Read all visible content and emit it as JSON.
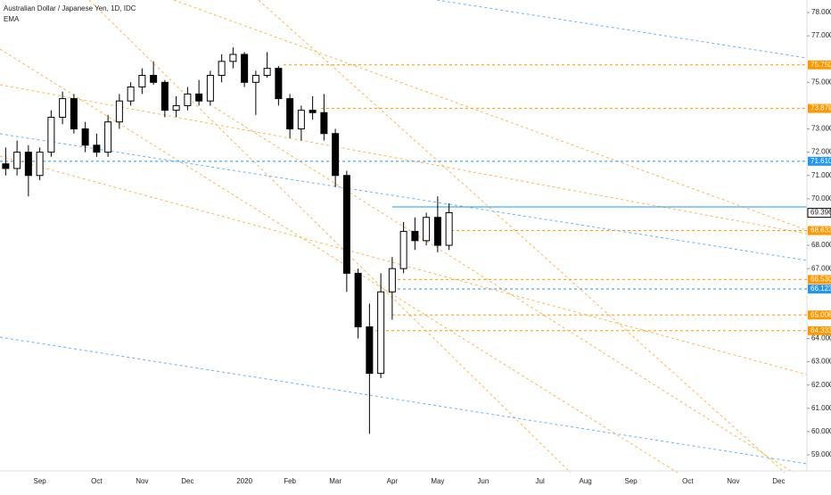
{
  "chart_data": {
    "type": "candlestick",
    "title": "Australian Dollar / Japanese Yen, 1D, IDC",
    "indicator": "EMA",
    "categories": [
      null,
      null,
      null,
      "Sep",
      null,
      null,
      null,
      null,
      "Oct",
      null,
      null,
      null,
      "Nov",
      null,
      null,
      null,
      "Dec",
      null,
      null,
      null,
      null,
      "2020",
      null,
      null,
      null,
      "Feb",
      null,
      null,
      null,
      "Mar",
      null,
      null,
      null,
      null,
      "Apr",
      null,
      null,
      null,
      "May",
      null,
      null,
      null,
      "Jun",
      null,
      null,
      null,
      null,
      "Jul",
      null,
      null,
      null,
      "Aug",
      null,
      null,
      null,
      "Sep",
      null,
      null,
      null,
      null,
      "Oct",
      null,
      null,
      null,
      "Nov",
      null,
      null,
      null,
      "Dec",
      null,
      null
    ],
    "open": [
      71.5,
      71.3,
      72.0,
      71.0,
      72.0,
      73.5,
      74.3,
      73.0,
      72.3,
      72.0,
      73.3,
      74.2,
      74.8,
      75.3,
      75.0,
      73.8,
      74.0,
      74.5,
      74.2,
      75.3,
      75.9,
      76.2,
      75.0,
      75.3,
      75.6,
      74.3,
      73.0,
      73.8,
      73.7,
      72.8,
      71.0,
      66.8,
      64.5,
      62.5,
      66.0,
      67.0,
      68.6,
      68.2,
      69.2,
      68.0,
      null,
      null,
      null,
      null,
      null,
      null,
      null,
      null,
      null,
      null,
      null,
      null,
      null,
      null,
      null,
      null,
      null,
      null,
      null,
      null,
      null,
      null,
      null,
      null,
      null,
      null,
      null,
      null,
      null,
      null,
      null
    ],
    "high": [
      72.2,
      72.5,
      72.3,
      72.2,
      73.8,
      74.6,
      74.5,
      73.3,
      72.8,
      73.6,
      74.5,
      75.0,
      75.6,
      75.9,
      75.1,
      74.4,
      74.8,
      75.1,
      75.5,
      76.2,
      76.5,
      76.3,
      75.5,
      76.3,
      75.7,
      74.5,
      74.0,
      74.4,
      74.5,
      73.0,
      71.2,
      67.0,
      65.5,
      66.8,
      67.5,
      69.0,
      69.2,
      69.4,
      70.1,
      69.8,
      null,
      null,
      null,
      null,
      null,
      null,
      null,
      null,
      null,
      null,
      null,
      null,
      null,
      null,
      null,
      null,
      null,
      null,
      null,
      null,
      null,
      null,
      null,
      null,
      null,
      null,
      null,
      null,
      null,
      null,
      null
    ],
    "low": [
      71.0,
      71.0,
      70.1,
      70.8,
      71.8,
      73.2,
      72.8,
      72.0,
      71.8,
      71.8,
      73.0,
      74.0,
      74.5,
      74.9,
      73.5,
      73.5,
      73.8,
      74.0,
      74.0,
      75.0,
      75.6,
      74.8,
      73.6,
      75.2,
      74.0,
      72.6,
      72.5,
      73.4,
      72.5,
      70.5,
      66.0,
      64.0,
      59.9,
      62.3,
      64.8,
      66.8,
      67.8,
      68.0,
      67.7,
      67.8,
      null,
      null,
      null,
      null,
      null,
      null,
      null,
      null,
      null,
      null,
      null,
      null,
      null,
      null,
      null,
      null,
      null,
      null,
      null,
      null,
      null,
      null,
      null,
      null,
      null,
      null,
      null,
      null,
      null,
      null,
      null
    ],
    "close": [
      71.3,
      72.0,
      71.0,
      72.0,
      73.5,
      74.3,
      73.0,
      72.3,
      72.0,
      73.3,
      74.2,
      74.8,
      75.3,
      75.0,
      73.8,
      74.0,
      74.5,
      74.2,
      75.3,
      75.9,
      76.2,
      75.0,
      75.3,
      75.6,
      74.3,
      73.0,
      73.8,
      73.7,
      72.8,
      71.0,
      66.8,
      64.5,
      62.5,
      66.0,
      67.0,
      68.6,
      68.2,
      69.2,
      68.0,
      69.4,
      null,
      null,
      null,
      null,
      null,
      null,
      null,
      null,
      null,
      null,
      null,
      null,
      null,
      null,
      null,
      null,
      null,
      null,
      null,
      null,
      null,
      null,
      null,
      null,
      null,
      null,
      null,
      null,
      null,
      null,
      null
    ],
    "ylim": [
      58.6,
      78.5
    ],
    "yticks": [
      {
        "value": 78,
        "label": "78.000"
      },
      {
        "value": 77,
        "label": "77.000"
      },
      {
        "value": 75,
        "label": "75.000"
      },
      {
        "value": 73,
        "label": "73.000"
      },
      {
        "value": 72,
        "label": "72.000"
      },
      {
        "value": 71,
        "label": "71.000"
      },
      {
        "value": 70,
        "label": "70.000"
      },
      {
        "value": 68,
        "label": "68.000"
      },
      {
        "value": 67,
        "label": "67.000"
      },
      {
        "value": 64,
        "label": "64.000"
      },
      {
        "value": 63,
        "label": "63.000"
      },
      {
        "value": 62,
        "label": "62.000"
      },
      {
        "value": 61,
        "label": "61.000"
      },
      {
        "value": 60,
        "label": "60.000"
      },
      {
        "value": 59,
        "label": "59.000"
      }
    ],
    "levels": [
      {
        "value": 75.75,
        "label": "75.750",
        "color": "#ff9800"
      },
      {
        "value": 73.879,
        "label": "73.879",
        "color": "#ff9800"
      },
      {
        "value": 71.61,
        "label": "71.610",
        "color": "#2196f3"
      },
      {
        "value": 68.633,
        "label": "68.633",
        "color": "#ff9800"
      },
      {
        "value": 66.53,
        "label": "66.530",
        "color": "#ff9800"
      },
      {
        "value": 66.123,
        "label": "66.123",
        "color": "#2196f3"
      },
      {
        "value": 65.008,
        "label": "65.008",
        "color": "#ff9800"
      },
      {
        "value": 64.333,
        "label": "64.333",
        "color": "#ff9800"
      }
    ],
    "last": {
      "value": 69.396,
      "label": "69.396"
    },
    "up_color": "#ffffff",
    "down_color": "#000000"
  }
}
